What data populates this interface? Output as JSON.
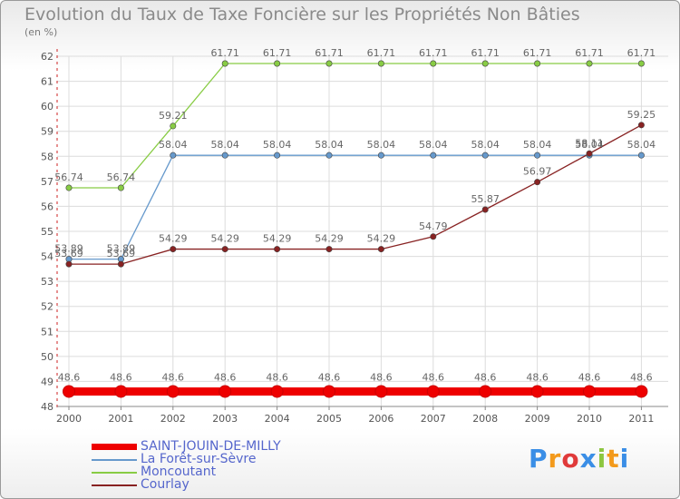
{
  "title": "Evolution du Taux de Taxe Foncière sur les Propriétés Non Bâties",
  "unit": "(en %)",
  "chart_data": {
    "type": "line",
    "title": "Evolution du Taux de Taxe Foncière sur les Propriétés Non Bâties",
    "ylabel": "(en %)",
    "xlabel": "",
    "x": [
      "2000",
      "2001",
      "2002",
      "2003",
      "2004",
      "2005",
      "2006",
      "2007",
      "2008",
      "2009",
      "2010",
      "2011"
    ],
    "ylim": [
      48,
      62
    ],
    "yticks": [
      48,
      49,
      50,
      51,
      52,
      53,
      54,
      55,
      56,
      57,
      58,
      59,
      60,
      61,
      62
    ],
    "grid": true,
    "legend_position": "bottom",
    "series": [
      {
        "name": "SAINT-JOUIN-DE-MILLY",
        "color": "#ee0000",
        "values": [
          48.6,
          48.6,
          48.6,
          48.6,
          48.6,
          48.6,
          48.6,
          48.6,
          48.6,
          48.6,
          48.6,
          48.6
        ],
        "labels": [
          "48.6",
          "48.6",
          "48.6",
          "48.6",
          "48.6",
          "48.6",
          "48.6",
          "48.6",
          "48.6",
          "48.6",
          "48.6",
          "48.6"
        ]
      },
      {
        "name": "La Forêt-sur-Sèvre",
        "color": "#6699cc",
        "values": [
          53.89,
          53.89,
          58.04,
          58.04,
          58.04,
          58.04,
          58.04,
          58.04,
          58.04,
          58.04,
          58.04,
          58.04
        ],
        "labels": [
          "53.89",
          "53.89",
          "58.04",
          "58.04",
          "58.04",
          "58.04",
          "58.04",
          "58.04",
          "58.04",
          "58.04",
          "58.04",
          "58.04"
        ]
      },
      {
        "name": "Moncoutant",
        "color": "#88cc44",
        "values": [
          56.74,
          56.74,
          59.21,
          61.71,
          61.71,
          61.71,
          61.71,
          61.71,
          61.71,
          61.71,
          61.71,
          61.71
        ],
        "labels": [
          "56.74",
          "56.74",
          "59.21",
          "61.71",
          "61.71",
          "61.71",
          "61.71",
          "61.71",
          "61.71",
          "61.71",
          "61.71",
          "61.71"
        ]
      },
      {
        "name": "Courlay",
        "color": "#882222",
        "values": [
          53.69,
          53.69,
          54.29,
          54.29,
          54.29,
          54.29,
          54.29,
          54.79,
          55.87,
          56.97,
          58.11,
          59.25
        ],
        "labels": [
          "53.69",
          "53.69",
          "54.29",
          "54.29",
          "54.29",
          "54.29",
          "54.29",
          "54.79",
          "55.87",
          "56.97",
          "58.11",
          "59.25"
        ]
      }
    ]
  },
  "logo": {
    "letters": [
      "P",
      "r",
      "o",
      "x",
      "i",
      "t",
      "i"
    ],
    "colors": [
      "#3a8ee6",
      "#f39a1c",
      "#e03a3a",
      "#3a8ee6",
      "#8cc63f",
      "#f39a1c",
      "#3a8ee6"
    ]
  }
}
